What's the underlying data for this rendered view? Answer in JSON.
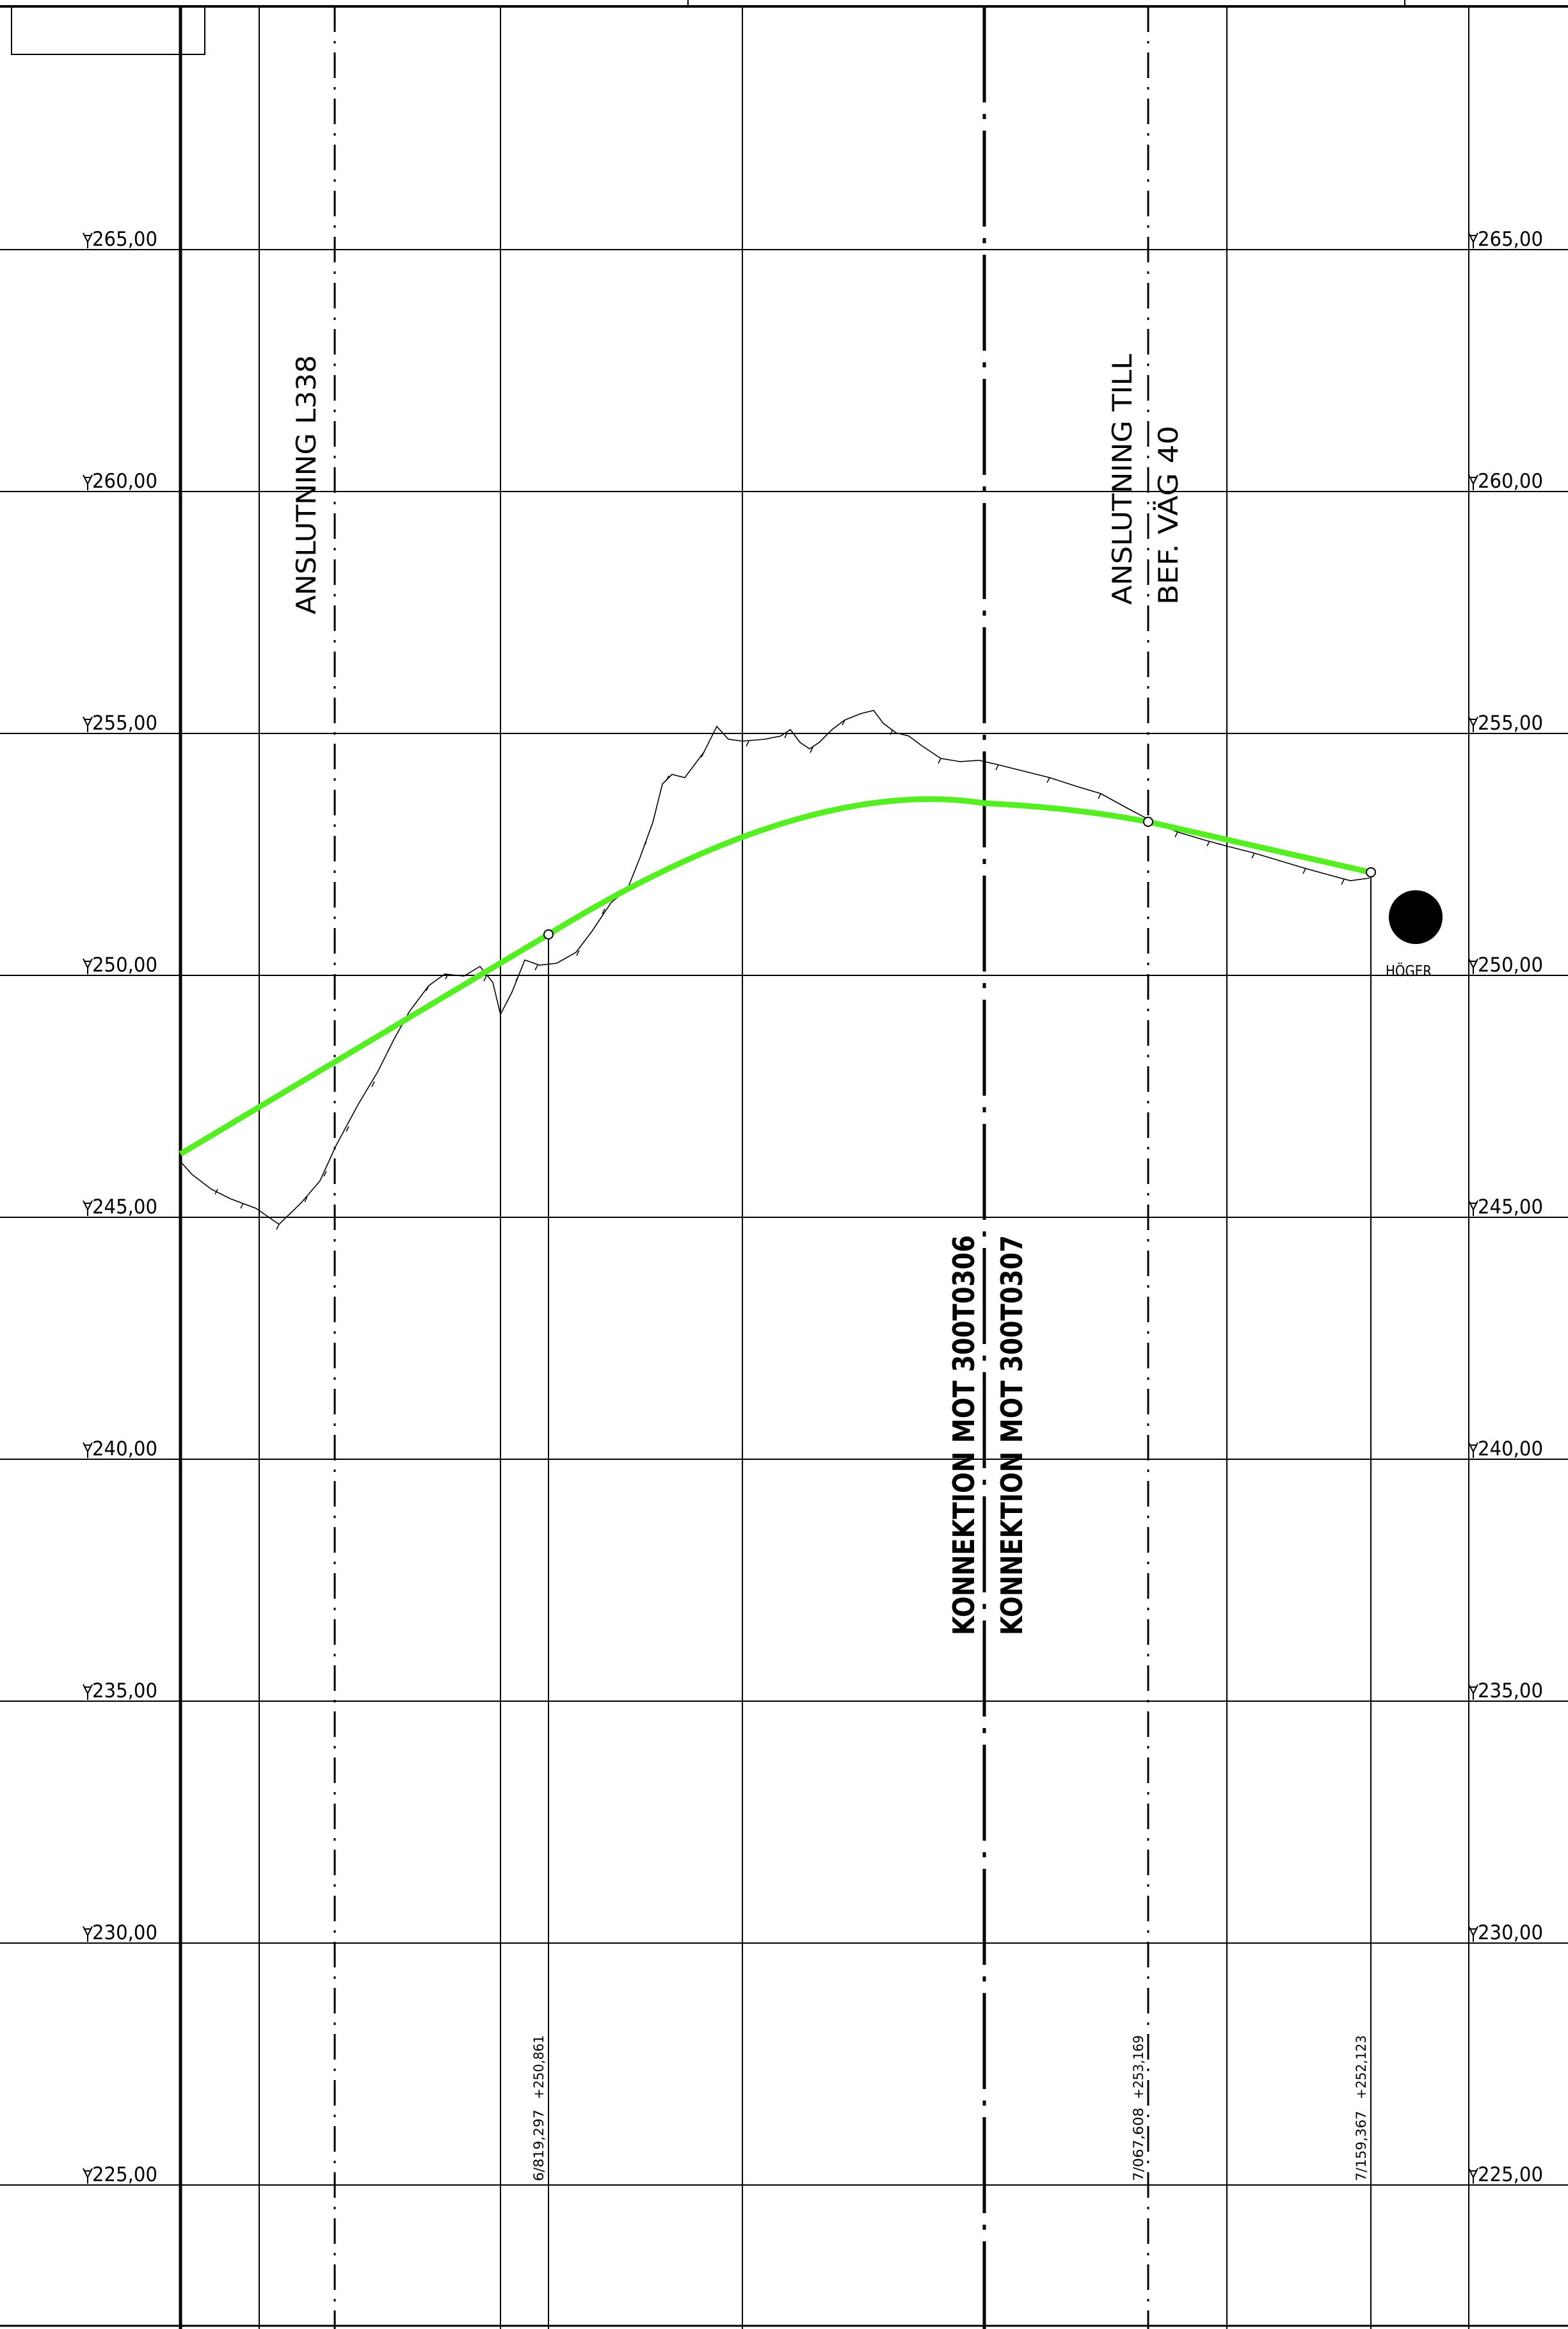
{
  "elevation_labels": [
    "265,00",
    "260,00",
    "255,00",
    "250,00",
    "245,00",
    "240,00",
    "235,00",
    "230,00",
    "225,00"
  ],
  "annotations": {
    "anslutning_l338": "ANSLUTNING L338",
    "anslutning_till": "ANSLUTNING TILL",
    "bef_vag": "BEF. VÄG 40",
    "konnektion_1": "KONNEKTION MOT 300T0306",
    "konnektion_2": "KONNEKTION MOT 300T0307",
    "side_label": "HÖGER"
  },
  "profile_points": [
    {
      "station": "6/819,297",
      "elevation": "+250,861"
    },
    {
      "station": "7/067,608",
      "elevation": "+253,169"
    },
    {
      "station": "7/159,367",
      "elevation": "+252,123"
    }
  ],
  "colors": {
    "design_line": "#55ee22",
    "grid": "#000000",
    "background": "#ffffff"
  }
}
